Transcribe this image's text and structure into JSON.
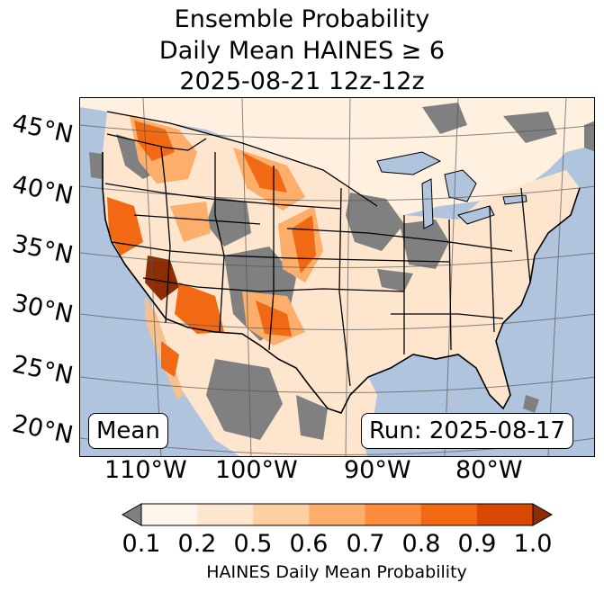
{
  "title": {
    "line1": "Ensemble Probability",
    "line2": "Daily Mean HAINES ≥ 6",
    "line3": "2025-08-21 12z-12z"
  },
  "map": {
    "lat_labels": [
      "45°N",
      "40°N",
      "35°N",
      "30°N",
      "25°N",
      "20°N"
    ],
    "lon_labels": [
      "110°W",
      "100°W",
      "90°W",
      "80°W"
    ],
    "mean_label": "Mean",
    "run_label": "Run: 2025-08-17",
    "colors": {
      "ocean": "#b0c4de",
      "missing": "#808080",
      "low": "#fff5eb"
    }
  },
  "colorbar": {
    "ticks": [
      "0.1",
      "0.2",
      "0.5",
      "0.6",
      "0.7",
      "0.8",
      "0.9",
      "1.0"
    ],
    "colors": [
      "#fff5eb",
      "#fee6ce",
      "#fdd0a2",
      "#fdae6b",
      "#fd8d3c",
      "#f16913",
      "#d94801",
      "#8c2d04"
    ],
    "under_color": "#808080",
    "label": "HAINES Daily Mean Probability"
  }
}
